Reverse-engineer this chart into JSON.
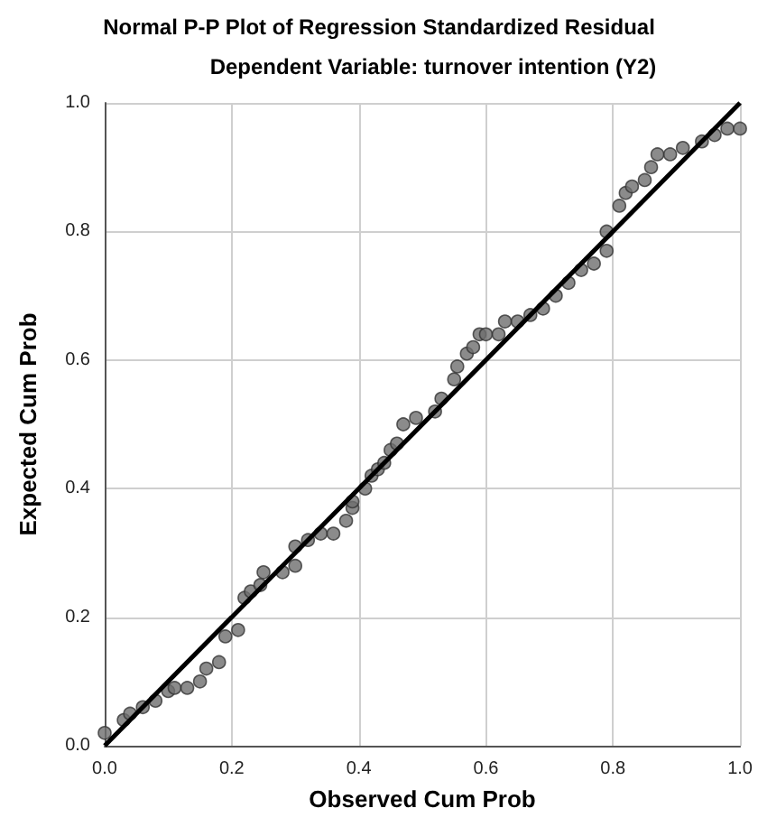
{
  "chart_data": {
    "type": "scatter",
    "title": "Normal P-P Plot of Regression Standardized Residual",
    "subtitle": "Dependent Variable: turnover intention (Y2)",
    "xlabel": "Observed Cum Prob",
    "ylabel": "Expected Cum Prob",
    "xlim": [
      0,
      1
    ],
    "ylim": [
      0,
      1
    ],
    "xticks": [
      {
        "value": 0,
        "label": "0.0"
      },
      {
        "value": 0.2,
        "label": "0.2"
      },
      {
        "value": 0.4,
        "label": "0.4"
      },
      {
        "value": 0.6,
        "label": "0.6"
      },
      {
        "value": 0.8,
        "label": "0.8"
      },
      {
        "value": 1,
        "label": "1.0"
      }
    ],
    "yticks": [
      {
        "value": 0,
        "label": "0.0"
      },
      {
        "value": 0.2,
        "label": "0.2"
      },
      {
        "value": 0.4,
        "label": "0.4"
      },
      {
        "value": 0.6,
        "label": "0.6"
      },
      {
        "value": 0.8,
        "label": "0.8"
      },
      {
        "value": 1,
        "label": "1.0"
      }
    ],
    "grid": true,
    "marker": "circle",
    "series": [
      {
        "color": "#6e6e6e",
        "x": [
          0.0,
          0.03,
          0.04,
          0.06,
          0.08,
          0.1,
          0.11,
          0.13,
          0.15,
          0.16,
          0.18,
          0.19,
          0.21,
          0.22,
          0.23,
          0.245,
          0.25,
          0.28,
          0.3,
          0.3,
          0.32,
          0.34,
          0.36,
          0.38,
          0.39,
          0.39,
          0.41,
          0.42,
          0.43,
          0.44,
          0.45,
          0.46,
          0.47,
          0.49,
          0.52,
          0.53,
          0.55,
          0.555,
          0.57,
          0.58,
          0.59,
          0.6,
          0.62,
          0.63,
          0.65,
          0.67,
          0.69,
          0.71,
          0.73,
          0.75,
          0.77,
          0.79,
          0.79,
          0.81,
          0.82,
          0.83,
          0.85,
          0.86,
          0.87,
          0.89,
          0.91,
          0.94,
          0.96,
          0.98,
          1.0
        ],
        "values": [
          0.02,
          0.04,
          0.05,
          0.06,
          0.07,
          0.085,
          0.09,
          0.09,
          0.1,
          0.12,
          0.13,
          0.17,
          0.18,
          0.23,
          0.24,
          0.25,
          0.27,
          0.27,
          0.28,
          0.31,
          0.32,
          0.33,
          0.33,
          0.35,
          0.37,
          0.38,
          0.4,
          0.42,
          0.43,
          0.44,
          0.46,
          0.47,
          0.5,
          0.51,
          0.52,
          0.54,
          0.57,
          0.59,
          0.61,
          0.62,
          0.64,
          0.64,
          0.64,
          0.66,
          0.66,
          0.67,
          0.68,
          0.7,
          0.72,
          0.74,
          0.75,
          0.77,
          0.8,
          0.84,
          0.86,
          0.87,
          0.88,
          0.9,
          0.92,
          0.92,
          0.93,
          0.94,
          0.95,
          0.96,
          0.96
        ]
      },
      {
        "type": "line",
        "color": "#000000",
        "x": [
          0,
          1
        ],
        "values": [
          0,
          1
        ],
        "line_style": "solid",
        "marker": "none"
      }
    ]
  }
}
